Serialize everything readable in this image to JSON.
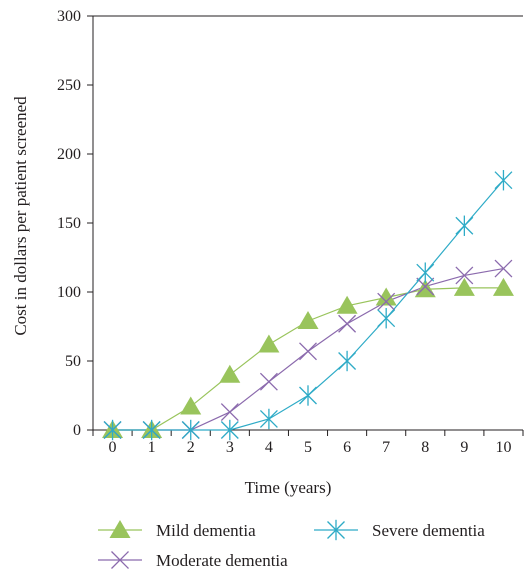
{
  "chart_data": {
    "type": "line",
    "title": "",
    "xlabel": "Time (years)",
    "ylabel": "Cost in dollars per patient screened",
    "x": [
      0,
      1,
      2,
      3,
      4,
      5,
      6,
      7,
      8,
      9,
      10
    ],
    "xlim": [
      -0.5,
      10.5
    ],
    "ylim": [
      0,
      300
    ],
    "yticks": [
      0,
      50,
      100,
      150,
      200,
      250,
      300
    ],
    "xticks": [
      0,
      1,
      2,
      3,
      4,
      5,
      6,
      7,
      8,
      9,
      10
    ],
    "grid": false,
    "legend_position": "bottom",
    "series": [
      {
        "name": "Mild dementia",
        "color": "#99c45c",
        "marker": "triangle",
        "values": [
          0,
          0,
          17,
          40,
          62,
          79,
          90,
          96,
          102,
          103,
          103
        ]
      },
      {
        "name": "Moderate dementia",
        "color": "#8b6aad",
        "marker": "x",
        "values": [
          0,
          0,
          0,
          13,
          35,
          57,
          77,
          93,
          104,
          112,
          117
        ]
      },
      {
        "name": "Severe dementia",
        "color": "#2eabc7",
        "marker": "asterisk",
        "values": [
          0,
          0,
          0,
          0,
          8,
          25,
          50,
          81,
          114,
          148,
          181
        ]
      }
    ]
  }
}
